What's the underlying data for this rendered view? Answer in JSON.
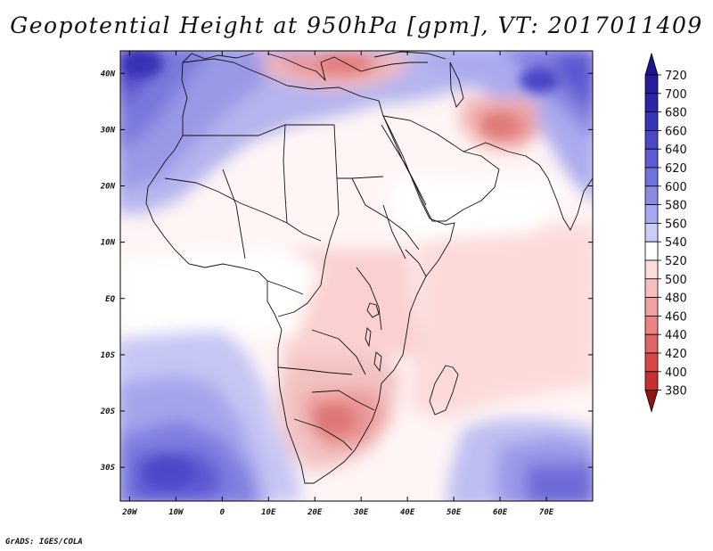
{
  "title": "Geopotential Height at 950hPa [gpm], VT: 2017011409",
  "credit": "GrADS: IGES/COLA",
  "map": {
    "lon_range": [
      -22,
      80
    ],
    "lat_range": [
      -36,
      44
    ],
    "lat_labels": [
      {
        "lat": 40,
        "text": "40N"
      },
      {
        "lat": 30,
        "text": "30N"
      },
      {
        "lat": 20,
        "text": "20N"
      },
      {
        "lat": 10,
        "text": "10N"
      },
      {
        "lat": 0,
        "text": "EQ"
      },
      {
        "lat": -10,
        "text": "10S"
      },
      {
        "lat": -20,
        "text": "20S"
      },
      {
        "lat": -30,
        "text": "30S"
      }
    ],
    "lon_labels": [
      {
        "lon": -20,
        "text": "20W"
      },
      {
        "lon": -10,
        "text": "10W"
      },
      {
        "lon": 0,
        "text": "0"
      },
      {
        "lon": 10,
        "text": "10E"
      },
      {
        "lon": 20,
        "text": "20E"
      },
      {
        "lon": 30,
        "text": "30E"
      },
      {
        "lon": 40,
        "text": "40E"
      },
      {
        "lon": 50,
        "text": "50E"
      },
      {
        "lon": 60,
        "text": "60E"
      },
      {
        "lon": 70,
        "text": "70E"
      }
    ]
  },
  "colorbar": {
    "levels": [
      {
        "label": "720",
        "color": "#261c9c"
      },
      {
        "label": "700",
        "color": "#2e26a8"
      },
      {
        "label": "680",
        "color": "#3a34b8"
      },
      {
        "label": "660",
        "color": "#4c48c8"
      },
      {
        "label": "640",
        "color": "#5e5cd4"
      },
      {
        "label": "620",
        "color": "#7272dc"
      },
      {
        "label": "600",
        "color": "#8a8ae4"
      },
      {
        "label": "580",
        "color": "#a8a8ee"
      },
      {
        "label": "560",
        "color": "#ccccf8"
      },
      {
        "label": "540",
        "color": "#ffffff"
      },
      {
        "label": "520",
        "color": "#fcdcdc"
      },
      {
        "label": "500",
        "color": "#f6c0c0"
      },
      {
        "label": "480",
        "color": "#f0a2a2"
      },
      {
        "label": "460",
        "color": "#e88484"
      },
      {
        "label": "440",
        "color": "#e06666"
      },
      {
        "label": "420",
        "color": "#d84848"
      },
      {
        "label": "400",
        "color": "#c83030"
      },
      {
        "label": "380",
        "color": "#a81c1c"
      }
    ],
    "top_color": "#1e1690",
    "bottom_color": "#901414"
  }
}
